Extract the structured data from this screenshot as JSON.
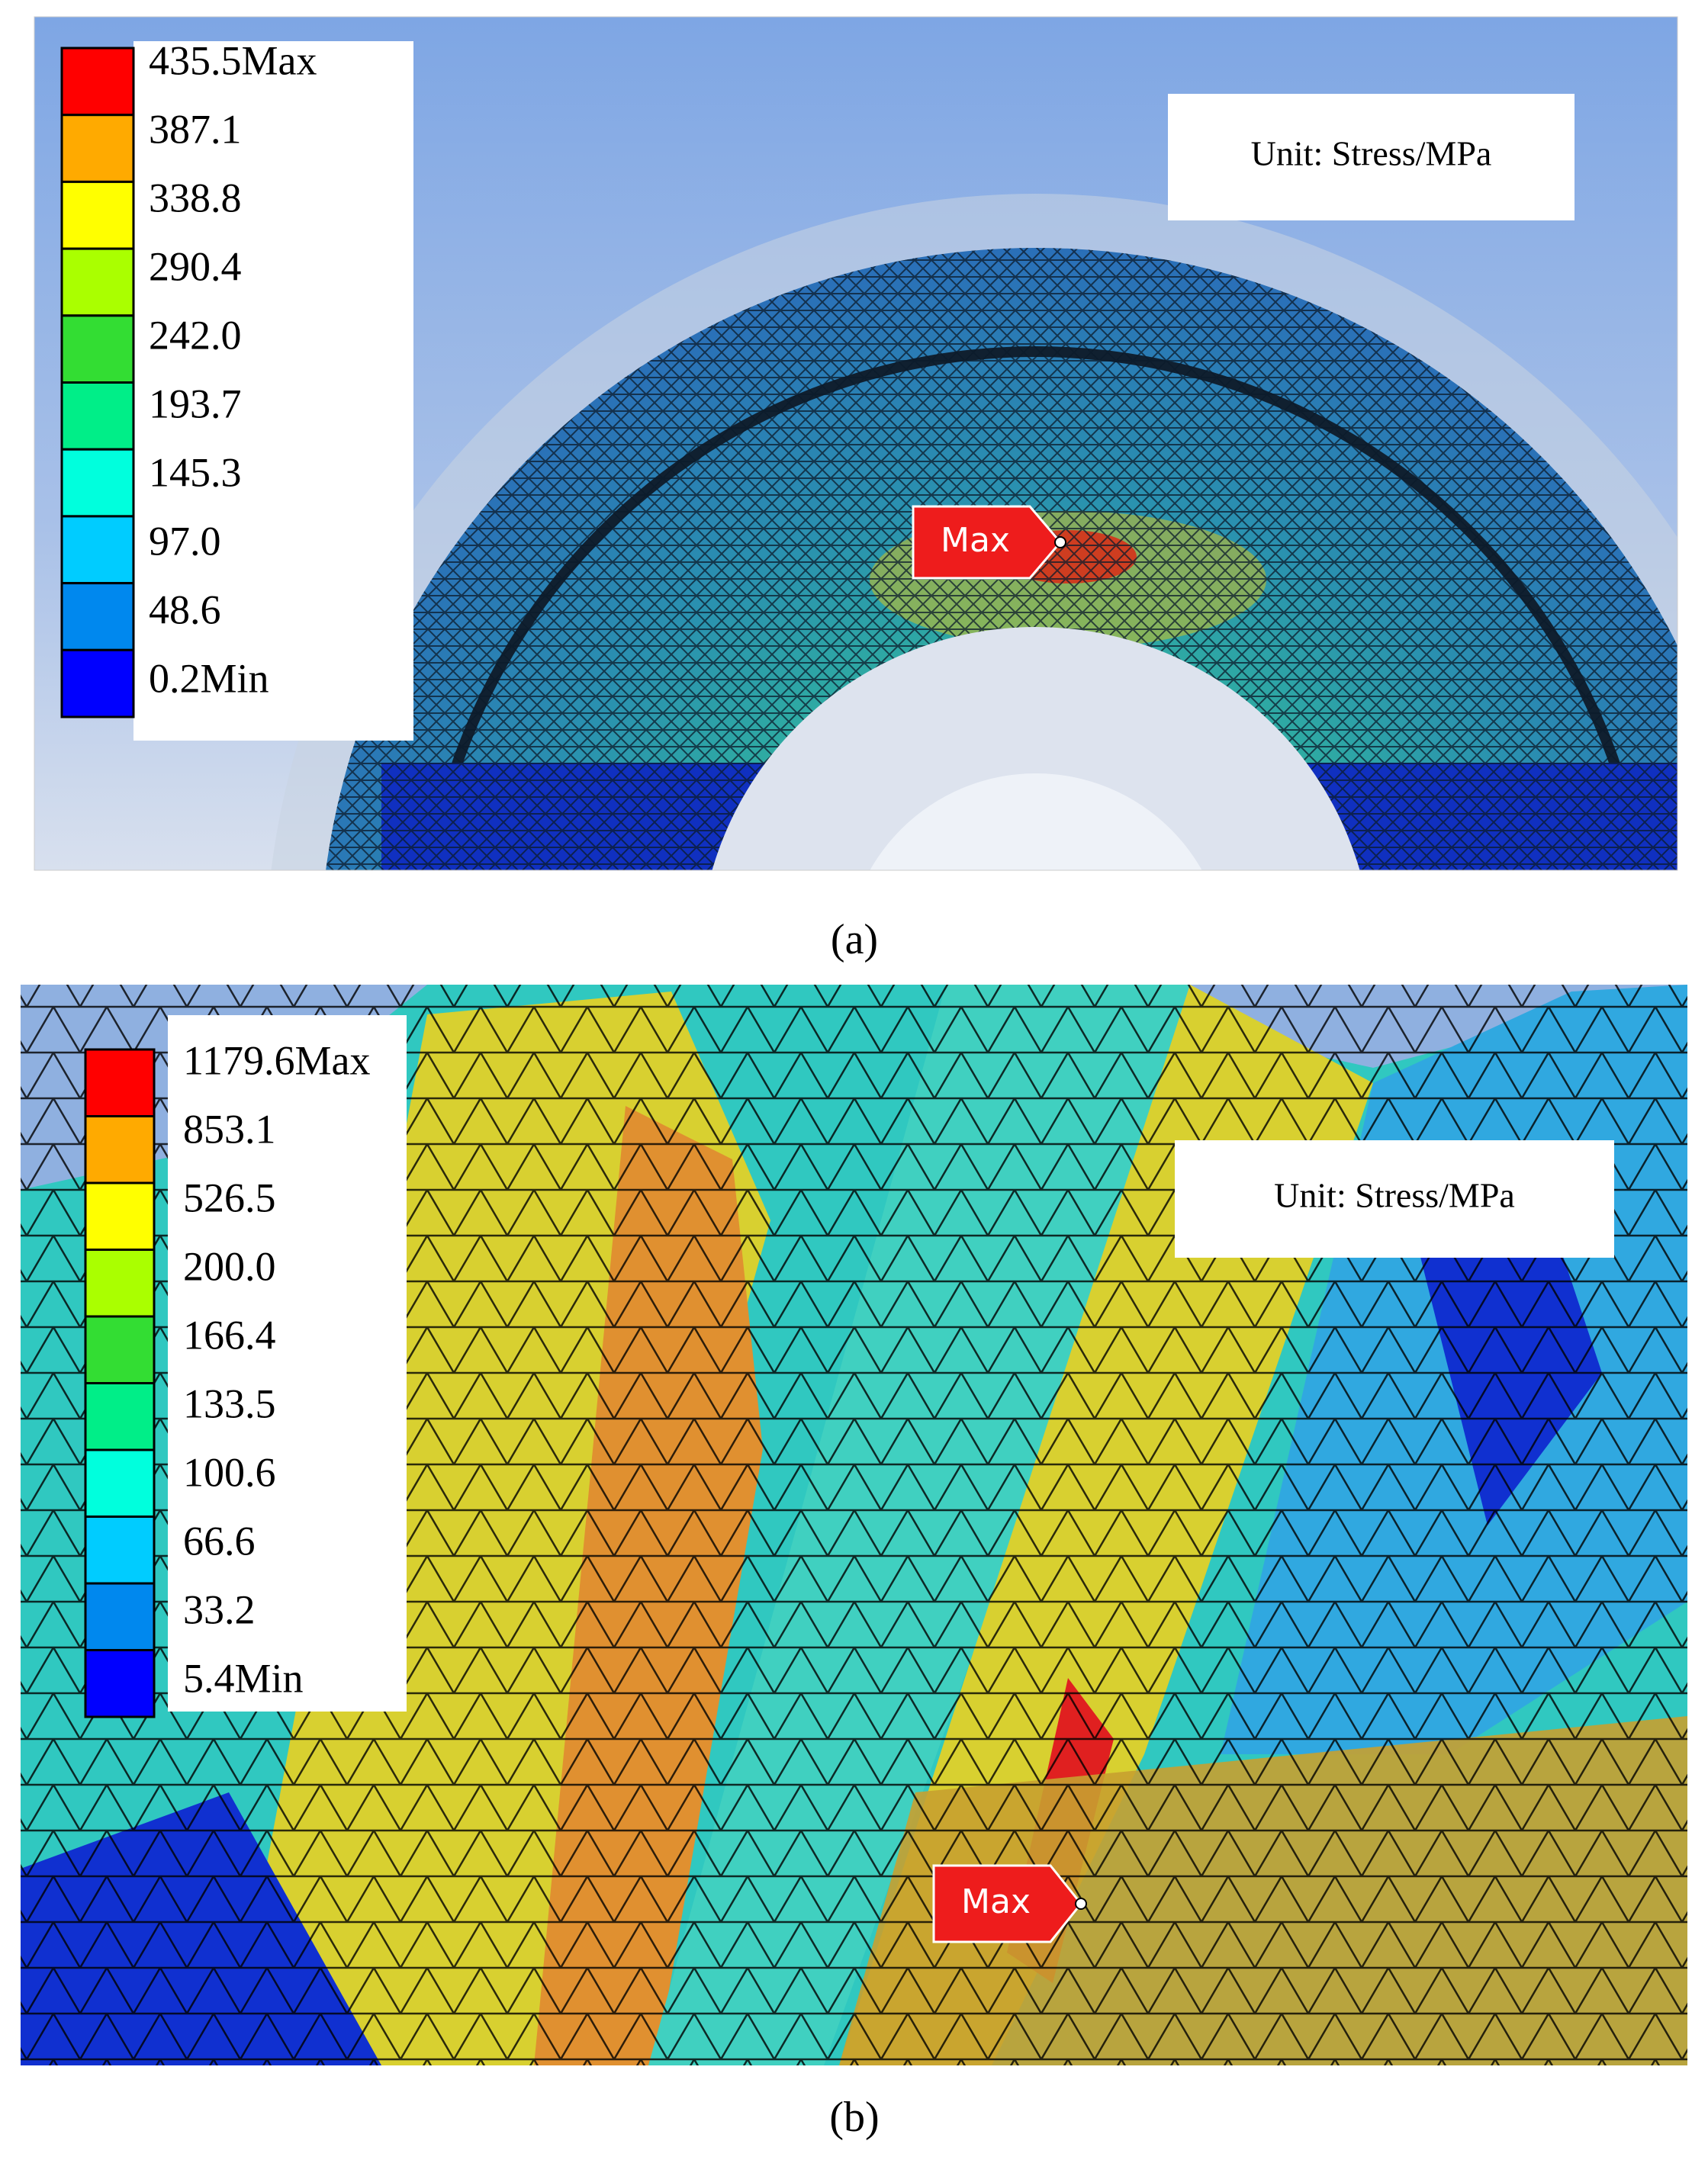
{
  "panels": [
    {
      "legend": [
        "435.5Max",
        "387.1",
        "338.8",
        "290.4",
        "242.0",
        "193.7",
        "145.3",
        "97.0",
        "48.6",
        "0.2Min"
      ],
      "unit": "Unit: Stress/MPa",
      "marker": "Max",
      "caption": "(a)"
    },
    {
      "legend": [
        "1179.6Max",
        "853.1",
        "526.5",
        "200.0",
        "166.4",
        "133.5",
        "100.6",
        "66.6",
        "33.2",
        "5.4Min"
      ],
      "unit": "Unit: Stress/MPa",
      "marker": "Max",
      "caption": "(b)"
    }
  ]
}
